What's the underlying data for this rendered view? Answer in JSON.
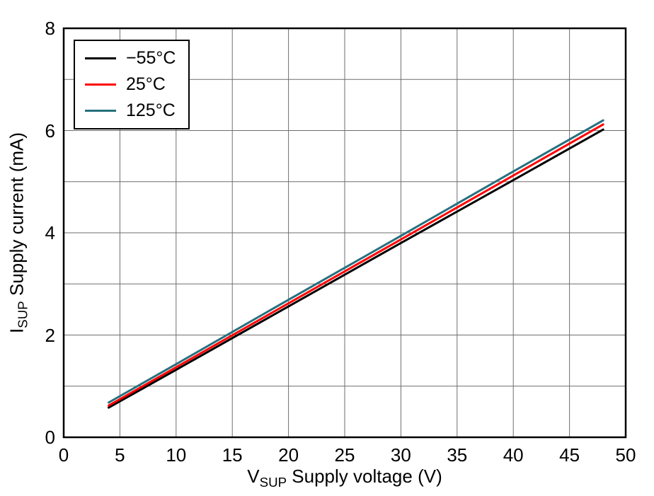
{
  "labels": {
    "xlabel": {
      "prefix": "V",
      "sub": "SUP",
      "rest": " Supply voltage (V)"
    },
    "ylabel": {
      "prefix": "I",
      "sub": "SUP",
      "rest": " Supply current (mA)"
    }
  },
  "colors": {
    "frame": "#000000",
    "grid": "#6e6e6e",
    "text": "#000000",
    "background": "#ffffff"
  },
  "chart_data": {
    "type": "line",
    "title": "",
    "xlabel": "VSUP Supply voltage (V)",
    "ylabel": "ISUP Supply current (mA)",
    "xlim": [
      0,
      50
    ],
    "ylim": [
      0,
      8
    ],
    "xticks": [
      0,
      5,
      10,
      15,
      20,
      25,
      30,
      35,
      40,
      45,
      50
    ],
    "yticks": [
      0,
      2,
      4,
      6,
      8
    ],
    "x_grid_step": 5,
    "y_grid_step": 1,
    "grid": true,
    "legend_position": "top-left",
    "series": [
      {
        "name": "−55°C",
        "color": "#000000",
        "x": [
          4,
          10,
          20,
          30,
          40,
          48
        ],
        "y": [
          0.58,
          1.32,
          2.56,
          3.8,
          5.03,
          6.02
        ]
      },
      {
        "name": "25°C",
        "color": "#ff0000",
        "x": [
          4,
          10,
          20,
          30,
          40,
          48
        ],
        "y": [
          0.62,
          1.37,
          2.62,
          3.87,
          5.12,
          6.12
        ]
      },
      {
        "name": "125°C",
        "color": "#26707e",
        "x": [
          4,
          10,
          20,
          30,
          40,
          48
        ],
        "y": [
          0.68,
          1.43,
          2.69,
          3.94,
          5.2,
          6.2
        ]
      }
    ]
  }
}
